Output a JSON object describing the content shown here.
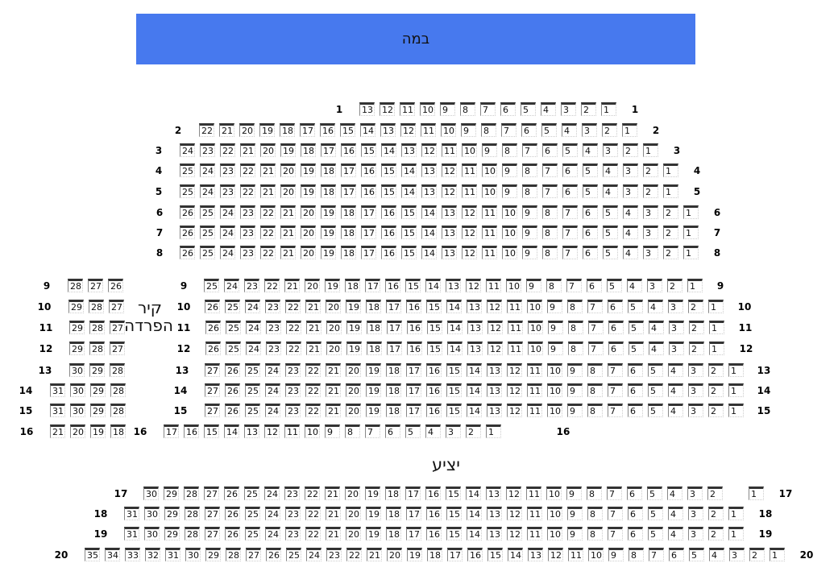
{
  "stage": {
    "label": "במה",
    "color": "#4779ee"
  },
  "wall_label": "קיר הפרדה",
  "balcony_label": "יציע",
  "rows": [
    {
      "label": "1",
      "sections": [
        {
          "from": 13,
          "to": 1
        }
      ]
    },
    {
      "label": "2",
      "sections": [
        {
          "from": 22,
          "to": 1
        }
      ]
    },
    {
      "label": "3",
      "sections": [
        {
          "from": 24,
          "to": 1
        }
      ]
    },
    {
      "label": "4",
      "sections": [
        {
          "from": 25,
          "to": 1
        }
      ]
    },
    {
      "label": "5",
      "sections": [
        {
          "from": 25,
          "to": 1
        }
      ]
    },
    {
      "label": "6",
      "sections": [
        {
          "from": 26,
          "to": 1
        }
      ]
    },
    {
      "label": "7",
      "sections": [
        {
          "from": 26,
          "to": 1
        }
      ]
    },
    {
      "label": "8",
      "sections": [
        {
          "from": 26,
          "to": 1
        }
      ]
    },
    {
      "label": "9",
      "sections": [
        {
          "from": 28,
          "to": 26
        },
        {
          "from": 25,
          "to": 1
        }
      ]
    },
    {
      "label": "10",
      "sections": [
        {
          "from": 29,
          "to": 27
        },
        {
          "from": 26,
          "to": 1
        }
      ]
    },
    {
      "label": "11",
      "sections": [
        {
          "from": 29,
          "to": 27
        },
        {
          "from": 26,
          "to": 1
        }
      ]
    },
    {
      "label": "12",
      "sections": [
        {
          "from": 29,
          "to": 27
        },
        {
          "from": 26,
          "to": 1
        }
      ]
    },
    {
      "label": "13",
      "sections": [
        {
          "from": 30,
          "to": 28
        },
        {
          "from": 27,
          "to": 1
        }
      ]
    },
    {
      "label": "14",
      "sections": [
        {
          "from": 31,
          "to": 28
        },
        {
          "from": 27,
          "to": 1
        }
      ]
    },
    {
      "label": "15",
      "sections": [
        {
          "from": 31,
          "to": 28
        },
        {
          "from": 27,
          "to": 1
        }
      ]
    },
    {
      "label": "16",
      "sections": [
        {
          "from": 21,
          "to": 18
        },
        {
          "from": 17,
          "to": 1
        }
      ]
    },
    {
      "label": "17",
      "sections": [
        {
          "from": 30,
          "to": 2
        },
        {
          "from": 1,
          "to": 1
        }
      ]
    },
    {
      "label": "18",
      "sections": [
        {
          "from": 31,
          "to": 1
        }
      ]
    },
    {
      "label": "19",
      "sections": [
        {
          "from": 31,
          "to": 1
        }
      ]
    },
    {
      "label": "20",
      "sections": [
        {
          "from": 35,
          "to": 1
        }
      ]
    }
  ]
}
